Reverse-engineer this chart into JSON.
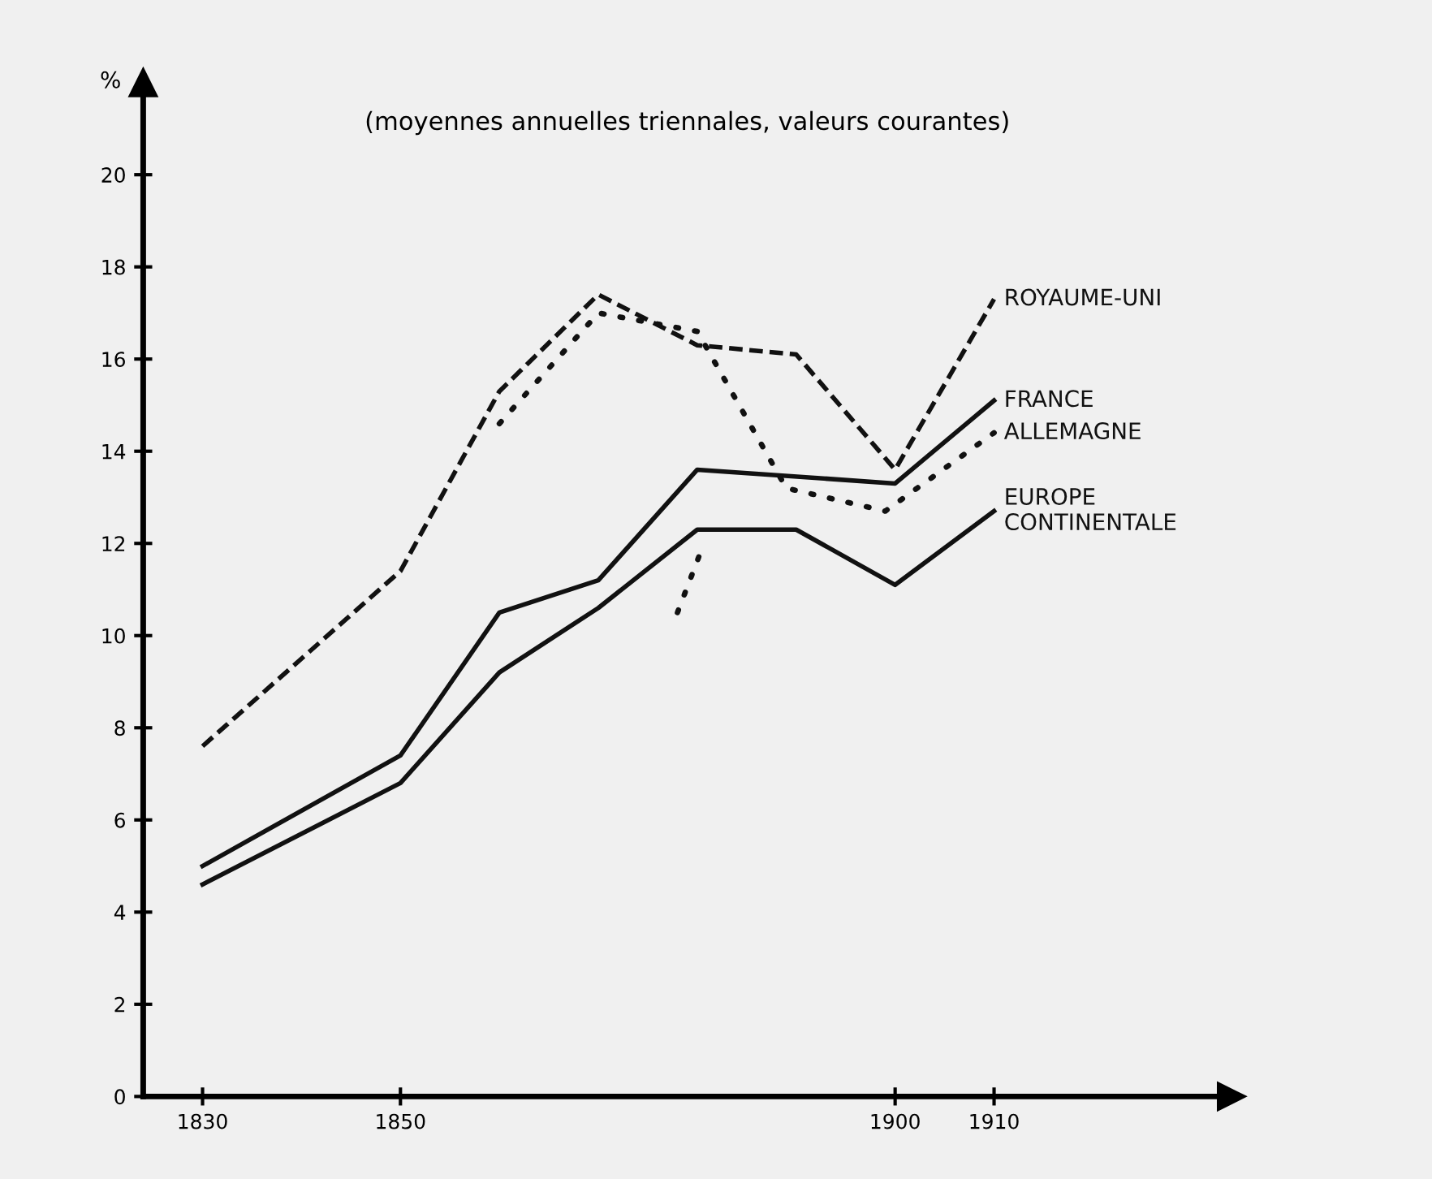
{
  "chart_data": {
    "type": "line",
    "title": "(moyennes annuelles triennales, valeurs courantes)",
    "ylabel": "%",
    "xlim": [
      1824,
      1934
    ],
    "xticks": [
      1830,
      1850,
      1900,
      1910
    ],
    "ylim": [
      0,
      22
    ],
    "yticks": [
      0,
      2,
      4,
      6,
      8,
      10,
      12,
      14,
      16,
      18,
      20
    ],
    "grid": false,
    "legend": false,
    "marker": "none",
    "series": [
      {
        "name": "ROYAUME-UNI",
        "color": "#111111",
        "line_style": "dashed",
        "x": [
          1830,
          1850,
          1860,
          1870,
          1880,
          1890,
          1900,
          1910
        ],
        "values": [
          7.6,
          11.4,
          15.3,
          17.4,
          16.3,
          16.1,
          13.6,
          17.3
        ]
      },
      {
        "name": "FRANCE",
        "color": "#111111",
        "line_style": "solid",
        "x": [
          1830,
          1850,
          1860,
          1870,
          1880,
          1900,
          1910
        ],
        "values": [
          5.0,
          7.4,
          10.5,
          11.2,
          13.6,
          13.3,
          15.1
        ]
      },
      {
        "name": "ALLEMAGNE",
        "color": "#111111",
        "line_style": "dotted",
        "x": [
          1860,
          1870,
          1880,
          1889,
          1899,
          1910
        ],
        "values": [
          14.6,
          17.0,
          16.6,
          13.2,
          12.7,
          14.4
        ]
      },
      {
        "name": "EUROPE\nCONTINENTALE",
        "color": "#111111",
        "line_style": "solid",
        "x": [
          1830,
          1850,
          1860,
          1870,
          1880,
          1890,
          1900,
          1910
        ],
        "values": [
          4.6,
          6.8,
          9.2,
          10.6,
          12.3,
          12.3,
          11.1,
          12.7
        ]
      },
      {
        "color": "#111111",
        "line_style": "dotted",
        "x": [
          1878,
          1880.5
        ],
        "values": [
          10.5,
          11.9
        ]
      }
    ]
  }
}
